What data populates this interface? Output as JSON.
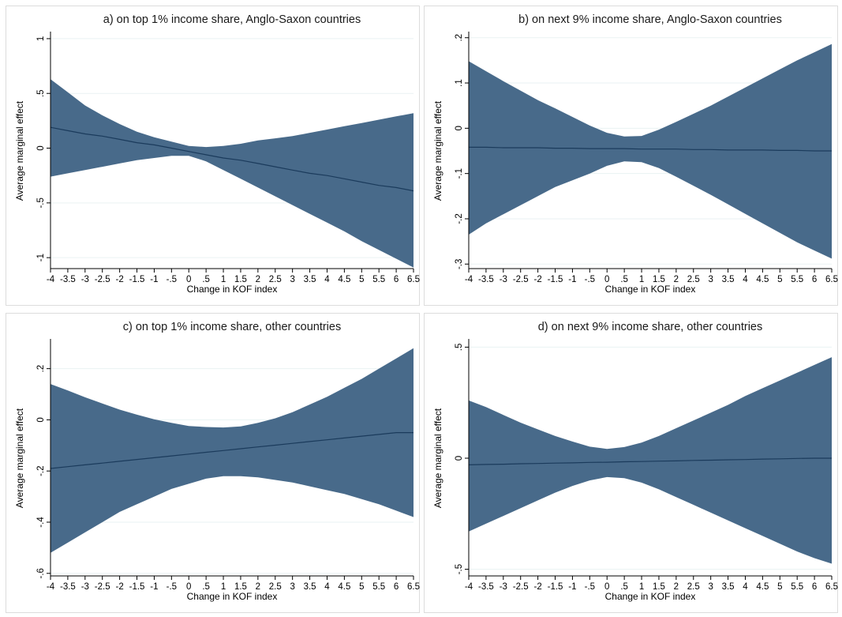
{
  "colors": {
    "band": "#486a8a",
    "line": "#1b3b5c",
    "grid": "#eaf2f3",
    "frame": "#dcdcdc"
  },
  "chart_data": [
    {
      "type": "area",
      "title": "a) on top 1% income share, Anglo-Saxon countries",
      "xlabel": "Change in KOF index",
      "ylabel": "Average marginal effect",
      "xlim": [
        -4,
        6.5
      ],
      "ylim": [
        -1.1,
        1.05
      ],
      "x_ticks": [
        -4,
        -3.5,
        -3,
        -2.5,
        -2,
        -1.5,
        -1,
        -0.5,
        0,
        0.5,
        1,
        1.5,
        2,
        2.5,
        3,
        3.5,
        4,
        4.5,
        5,
        5.5,
        6,
        6.5
      ],
      "x_tick_labels": [
        "-4",
        "-3.5",
        "-3",
        "-2.5",
        "-2",
        "-1.5",
        "-1",
        "-.5",
        "0",
        ".5",
        "1",
        "1.5",
        "2",
        "2.5",
        "3",
        "3.5",
        "4",
        "4.5",
        "5",
        "5.5",
        "6",
        "6.5"
      ],
      "y_ticks": [
        -1,
        -0.5,
        0,
        0.5,
        1
      ],
      "y_tick_labels": [
        "-1",
        "-.5",
        "0",
        ".5",
        "1"
      ],
      "grid": true,
      "x": [
        -4,
        -3.5,
        -3,
        -2.5,
        -2,
        -1.5,
        -1,
        -0.5,
        0,
        0.5,
        1,
        1.5,
        2,
        2.5,
        3,
        3.5,
        4,
        4.5,
        5,
        5.5,
        6,
        6.5
      ],
      "series": [
        {
          "values": [
            0.19,
            0.16,
            0.13,
            0.11,
            0.08,
            0.05,
            0.03,
            0.0,
            -0.03,
            -0.06,
            -0.09,
            -0.11,
            -0.14,
            -0.17,
            -0.2,
            -0.23,
            -0.25,
            -0.28,
            -0.31,
            -0.34,
            -0.36,
            -0.39
          ]
        },
        {
          "values": [
            0.63,
            0.51,
            0.39,
            0.3,
            0.22,
            0.15,
            0.1,
            0.06,
            0.02,
            0.01,
            0.02,
            0.04,
            0.07,
            0.09,
            0.11,
            0.14,
            0.17,
            0.2,
            0.23,
            0.26,
            0.29,
            0.32
          ]
        },
        {
          "values": [
            -0.26,
            -0.23,
            -0.2,
            -0.17,
            -0.14,
            -0.11,
            -0.09,
            -0.07,
            -0.07,
            -0.12,
            -0.2,
            -0.28,
            -0.36,
            -0.44,
            -0.52,
            -0.6,
            -0.68,
            -0.76,
            -0.85,
            -0.93,
            -1.01,
            -1.09
          ]
        }
      ]
    },
    {
      "type": "area",
      "title": "b) on next 9% income share, Anglo-Saxon countries",
      "xlabel": "Change in KOF index",
      "ylabel": "Average marginal effect",
      "xlim": [
        -4,
        6.5
      ],
      "ylim": [
        -0.31,
        0.21
      ],
      "x_ticks": [
        -4,
        -3.5,
        -3,
        -2.5,
        -2,
        -1.5,
        -1,
        -0.5,
        0,
        0.5,
        1,
        1.5,
        2,
        2.5,
        3,
        3.5,
        4,
        4.5,
        5,
        5.5,
        6,
        6.5
      ],
      "x_tick_labels": [
        "-4",
        "-3.5",
        "-3",
        "-2.5",
        "-2",
        "-1.5",
        "-1",
        "-.5",
        "0",
        ".5",
        "1",
        "1.5",
        "2",
        "2.5",
        "3",
        "3.5",
        "4",
        "4.5",
        "5",
        "5.5",
        "6",
        "6.5"
      ],
      "y_ticks": [
        -0.3,
        -0.2,
        -0.1,
        0,
        0.1,
        0.2
      ],
      "y_tick_labels": [
        "-.3",
        "-.2",
        "-.1",
        "0",
        ".1",
        ".2"
      ],
      "grid": true,
      "x": [
        -4,
        -3.5,
        -3,
        -2.5,
        -2,
        -1.5,
        -1,
        -0.5,
        0,
        0.5,
        1,
        1.5,
        2,
        2.5,
        3,
        3.5,
        4,
        4.5,
        5,
        5.5,
        6,
        6.5
      ],
      "series": [
        {
          "values": [
            -0.042,
            -0.042,
            -0.043,
            -0.043,
            -0.043,
            -0.044,
            -0.044,
            -0.045,
            -0.045,
            -0.045,
            -0.046,
            -0.046,
            -0.046,
            -0.047,
            -0.047,
            -0.048,
            -0.048,
            -0.048,
            -0.049,
            -0.049,
            -0.05,
            -0.05
          ]
        },
        {
          "values": [
            0.148,
            0.126,
            0.104,
            0.083,
            0.062,
            0.044,
            0.025,
            0.006,
            -0.01,
            -0.018,
            -0.017,
            -0.003,
            0.014,
            0.032,
            0.05,
            0.07,
            0.09,
            0.11,
            0.13,
            0.15,
            0.168,
            0.186
          ]
        },
        {
          "values": [
            -0.235,
            -0.21,
            -0.19,
            -0.17,
            -0.15,
            -0.13,
            -0.115,
            -0.1,
            -0.083,
            -0.073,
            -0.075,
            -0.088,
            -0.107,
            -0.127,
            -0.147,
            -0.168,
            -0.189,
            -0.21,
            -0.231,
            -0.252,
            -0.27,
            -0.288
          ]
        }
      ]
    },
    {
      "type": "area",
      "title": "c) on top 1% income share, other countries",
      "xlabel": "Change in KOF index",
      "ylabel": "Average marginal effect",
      "xlim": [
        -4,
        6.5
      ],
      "ylim": [
        -0.61,
        0.31
      ],
      "x_ticks": [
        -4,
        -3.5,
        -3,
        -2.5,
        -2,
        -1.5,
        -1,
        -0.5,
        0,
        0.5,
        1,
        1.5,
        2,
        2.5,
        3,
        3.5,
        4,
        4.5,
        5,
        5.5,
        6,
        6.5
      ],
      "x_tick_labels": [
        "-4",
        "-3.5",
        "-3",
        "-2.5",
        "-2",
        "-1.5",
        "-1",
        "-.5",
        "0",
        ".5",
        "1",
        "1.5",
        "2",
        "2.5",
        "3",
        "3.5",
        "4",
        "4.5",
        "5",
        "5.5",
        "6",
        "6.5"
      ],
      "y_ticks": [
        -0.6,
        -0.4,
        -0.2,
        0,
        0.2
      ],
      "y_tick_labels": [
        "-.6",
        "-.4",
        "-.2",
        "0",
        ".2"
      ],
      "grid": true,
      "x": [
        -4,
        -3.5,
        -3,
        -2.5,
        -2,
        -1.5,
        -1,
        -0.5,
        0,
        0.5,
        1,
        1.5,
        2,
        2.5,
        3,
        3.5,
        4,
        4.5,
        5,
        5.5,
        6,
        6.5
      ],
      "series": [
        {
          "values": [
            -0.19,
            -0.183,
            -0.176,
            -0.169,
            -0.162,
            -0.155,
            -0.148,
            -0.141,
            -0.134,
            -0.127,
            -0.12,
            -0.113,
            -0.106,
            -0.099,
            -0.092,
            -0.085,
            -0.078,
            -0.071,
            -0.064,
            -0.057,
            -0.05,
            -0.05
          ]
        },
        {
          "values": [
            0.14,
            0.115,
            0.088,
            0.064,
            0.04,
            0.02,
            0.002,
            -0.012,
            -0.024,
            -0.028,
            -0.03,
            -0.026,
            -0.012,
            0.006,
            0.03,
            0.06,
            0.09,
            0.125,
            0.16,
            0.2,
            0.24,
            0.28
          ]
        },
        {
          "values": [
            -0.52,
            -0.48,
            -0.44,
            -0.4,
            -0.36,
            -0.33,
            -0.3,
            -0.27,
            -0.25,
            -0.23,
            -0.22,
            -0.22,
            -0.225,
            -0.235,
            -0.245,
            -0.26,
            -0.275,
            -0.29,
            -0.31,
            -0.33,
            -0.355,
            -0.38
          ]
        }
      ]
    },
    {
      "type": "area",
      "title": "d) on next 9% income share, other countries",
      "xlabel": "Change in KOF index",
      "ylabel": "Average marginal effect",
      "xlim": [
        -4,
        6.5
      ],
      "ylim": [
        -0.53,
        0.53
      ],
      "x_ticks": [
        -4,
        -3.5,
        -3,
        -2.5,
        -2,
        -1.5,
        -1,
        -0.5,
        0,
        0.5,
        1,
        1.5,
        2,
        2.5,
        3,
        3.5,
        4,
        4.5,
        5,
        5.5,
        6,
        6.5
      ],
      "x_tick_labels": [
        "-4",
        "-3.5",
        "-3",
        "-2.5",
        "-2",
        "-1.5",
        "-1",
        "-.5",
        "0",
        ".5",
        "1",
        "1.5",
        "2",
        "2.5",
        "3",
        "3.5",
        "4",
        "4.5",
        "5",
        "5.5",
        "6",
        "6.5"
      ],
      "y_ticks": [
        -0.5,
        0,
        0.5
      ],
      "y_tick_labels": [
        "-.5",
        "0",
        ".5"
      ],
      "grid": true,
      "x": [
        -4,
        -3.5,
        -3,
        -2.5,
        -2,
        -1.5,
        -1,
        -0.5,
        0,
        0.5,
        1,
        1.5,
        2,
        2.5,
        3,
        3.5,
        4,
        4.5,
        5,
        5.5,
        6,
        6.5
      ],
      "series": [
        {
          "values": [
            -0.03,
            -0.028,
            -0.027,
            -0.025,
            -0.024,
            -0.022,
            -0.021,
            -0.019,
            -0.018,
            -0.016,
            -0.015,
            -0.013,
            -0.012,
            -0.01,
            -0.009,
            -0.007,
            -0.006,
            -0.004,
            -0.003,
            -0.001,
            0.0,
            0.0
          ]
        },
        {
          "values": [
            0.26,
            0.23,
            0.195,
            0.16,
            0.13,
            0.1,
            0.075,
            0.052,
            0.042,
            0.05,
            0.07,
            0.1,
            0.135,
            0.17,
            0.205,
            0.24,
            0.28,
            0.315,
            0.35,
            0.385,
            0.42,
            0.455
          ]
        },
        {
          "values": [
            -0.33,
            -0.295,
            -0.26,
            -0.225,
            -0.19,
            -0.155,
            -0.125,
            -0.1,
            -0.085,
            -0.09,
            -0.11,
            -0.14,
            -0.175,
            -0.21,
            -0.245,
            -0.28,
            -0.315,
            -0.35,
            -0.385,
            -0.42,
            -0.45,
            -0.475
          ]
        }
      ]
    }
  ]
}
